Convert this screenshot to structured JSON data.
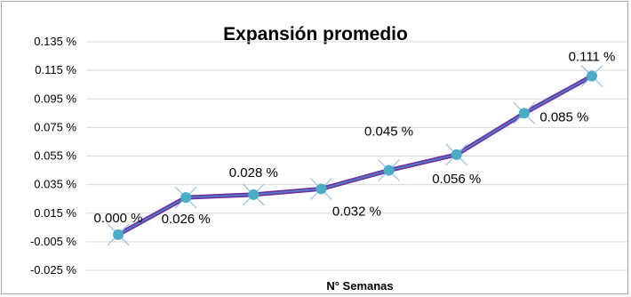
{
  "chart_data": {
    "type": "line",
    "title": "Expansión promedio",
    "xlabel": "N° Semanas",
    "ylabel": "",
    "ylim": [
      -0.025,
      0.135
    ],
    "yticks": [
      -0.025,
      -0.005,
      0.015,
      0.035,
      0.055,
      0.075,
      0.095,
      0.115,
      0.135
    ],
    "ytick_labels": [
      "-0.025 %",
      "-0.005 %",
      "0.015 %",
      "0.035 %",
      "0.055 %",
      "0.075 %",
      "0.095 %",
      "0.115 %",
      "0.135 %"
    ],
    "grid": true,
    "legend": "none",
    "x": [
      1,
      2,
      3,
      4,
      5,
      6,
      7,
      8
    ],
    "series": [
      {
        "values": [
          0.0,
          0.026,
          0.028,
          0.032,
          0.045,
          0.056,
          0.085,
          0.111
        ],
        "data_labels": [
          "0.000 %",
          "0.026 %",
          "0.028 %",
          "0.032 %",
          "0.045 %",
          "0.056 %",
          "0.085 %",
          "0.111 %"
        ]
      }
    ],
    "colors": {
      "line_outer": "#7030a0",
      "line_inner": "#4a86c8",
      "marker": "#4bacc6",
      "marker_x": "#9dc3e6",
      "grid": "#d9d9d9"
    }
  }
}
